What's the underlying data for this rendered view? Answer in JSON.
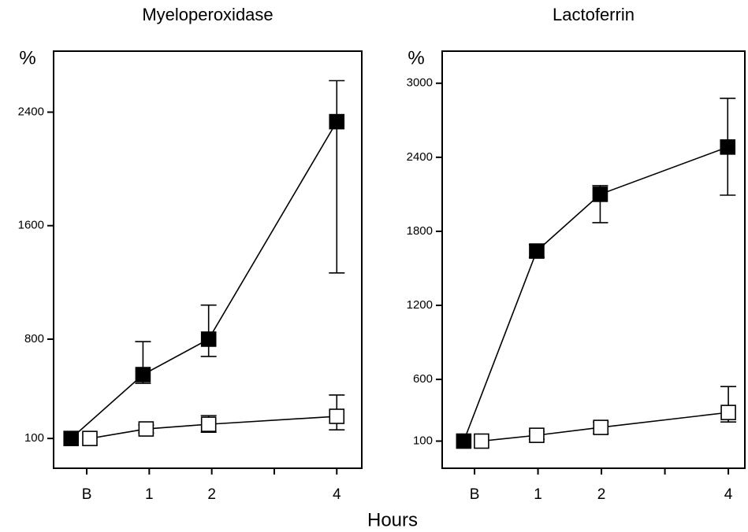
{
  "x_label": "Hours",
  "chart_data": [
    {
      "type": "line",
      "title": "Myeloperoxidase",
      "ylabel": "%",
      "xlim": [
        -0.53,
        4.4
      ],
      "ylim": [
        -110,
        2830
      ],
      "xticks": [
        {
          "value": 0,
          "label": "B"
        },
        1,
        2,
        4
      ],
      "xminorticks": [
        3
      ],
      "yticks": [
        100,
        800,
        1600,
        2400
      ],
      "series": [
        {
          "color": "#000000",
          "marker_fill": "#000000",
          "x": [
            -0.25,
            0.9,
            1.95,
            4
          ],
          "values": [
            100,
            550,
            800,
            2333
          ],
          "err_plus": [
            null,
            233,
            240,
            289
          ],
          "err_minus": [
            null,
            61,
            122,
            1066
          ]
        },
        {
          "color": "#000000",
          "marker_fill": "#ffffff",
          "x": [
            0.05,
            0.95,
            1.95,
            4
          ],
          "values": [
            100,
            167,
            200,
            256
          ],
          "err_plus": [
            null,
            27,
            61,
            150
          ],
          "err_minus": [
            null,
            28,
            56,
            95
          ]
        }
      ]
    },
    {
      "type": "line",
      "title": "Lactoferrin",
      "ylabel": "%",
      "xlim": [
        -0.51,
        4.26
      ],
      "ylim": [
        -120,
        3260
      ],
      "xticks": [
        {
          "value": 0,
          "label": "B"
        },
        1,
        2,
        4
      ],
      "xminorticks": [
        3
      ],
      "yticks": [
        100,
        600,
        1200,
        1800,
        2400,
        3000
      ],
      "series": [
        {
          "color": "#000000",
          "marker_fill": "#000000",
          "x": [
            -0.17,
            0.98,
            1.98,
            3.99
          ],
          "values": [
            100,
            1640,
            2100,
            2483
          ],
          "err_plus": [
            null,
            51,
            70,
            395
          ],
          "err_minus": [
            null,
            51,
            230,
            390
          ]
        },
        {
          "color": "#000000",
          "marker_fill": "#ffffff",
          "x": [
            0.11,
            0.98,
            1.99,
            4
          ],
          "values": [
            100,
            147,
            211,
            332
          ],
          "err_plus": [
            null,
            32,
            44,
            210
          ],
          "err_minus": [
            null,
            32,
            51,
            77
          ]
        }
      ]
    }
  ]
}
